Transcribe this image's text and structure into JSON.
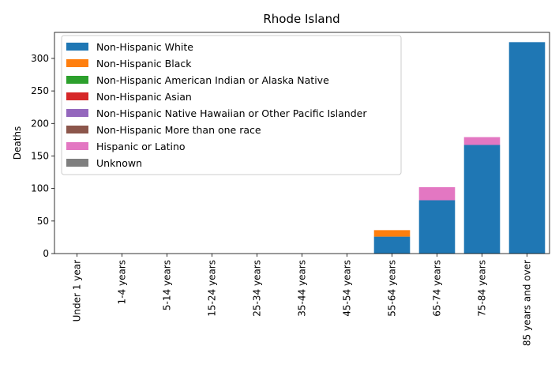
{
  "chart_data": {
    "type": "bar",
    "stacked": true,
    "title": "Rhode Island",
    "xlabel": "",
    "ylabel": "Deaths",
    "ylim": [
      0,
      340
    ],
    "yticks": [
      0,
      50,
      100,
      150,
      200,
      250,
      300
    ],
    "grid": false,
    "legend_position": "top-left",
    "categories": [
      "Under 1 year",
      "1-4 years",
      "5-14 years",
      "15-24 years",
      "25-34 years",
      "35-44 years",
      "45-54 years",
      "55-64 years",
      "65-74 years",
      "75-84 years",
      "85 years and over"
    ],
    "series": [
      {
        "name": "Non-Hispanic White",
        "color": "#1f77b4",
        "values": [
          0,
          0,
          0,
          0,
          0,
          0,
          0,
          26,
          82,
          167,
          325
        ]
      },
      {
        "name": "Non-Hispanic Black",
        "color": "#ff7f0e",
        "values": [
          0,
          0,
          0,
          0,
          0,
          0,
          0,
          10,
          0,
          0,
          0
        ]
      },
      {
        "name": "Non-Hispanic American Indian or Alaska Native",
        "color": "#2ca02c",
        "values": [
          0,
          0,
          0,
          0,
          0,
          0,
          0,
          0,
          0,
          0,
          0
        ]
      },
      {
        "name": "Non-Hispanic Asian",
        "color": "#d62728",
        "values": [
          0,
          0,
          0,
          0,
          0,
          0,
          0,
          0,
          0,
          0,
          0
        ]
      },
      {
        "name": "Non-Hispanic Native Hawaiian or Other Pacific Islander",
        "color": "#9467bd",
        "values": [
          0,
          0,
          0,
          0,
          0,
          0,
          0,
          0,
          0,
          0,
          0
        ]
      },
      {
        "name": "Non-Hispanic More than one race",
        "color": "#8c564b",
        "values": [
          0,
          0,
          0,
          0,
          0,
          0,
          0,
          0,
          0,
          0,
          0
        ]
      },
      {
        "name": "Hispanic or Latino",
        "color": "#e377c2",
        "values": [
          0,
          0,
          0,
          0,
          0,
          0,
          0,
          0,
          20,
          12,
          0
        ]
      },
      {
        "name": "Unknown",
        "color": "#7f7f7f",
        "values": [
          0,
          0,
          0,
          0,
          0,
          0,
          0,
          0,
          0,
          0,
          0
        ]
      }
    ]
  }
}
